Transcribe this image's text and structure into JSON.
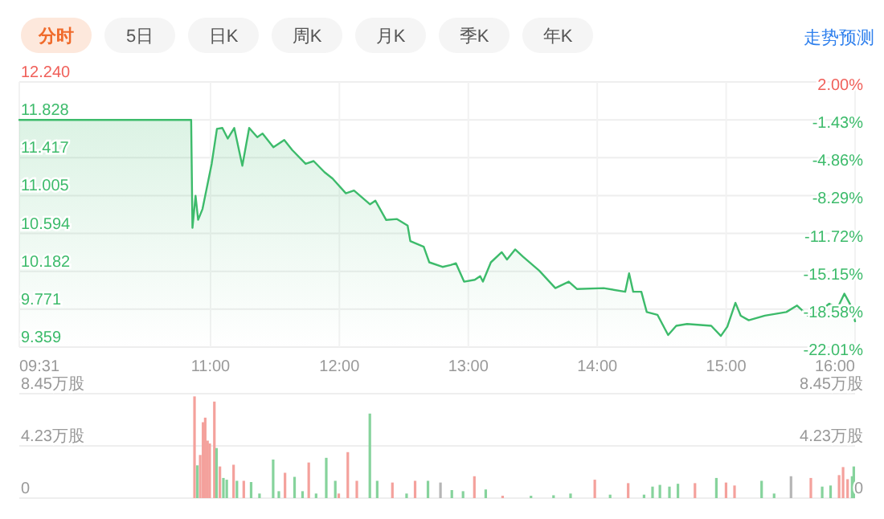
{
  "chart_data": [
    {
      "type": "other",
      "annotations": [
        "分时",
        "5日",
        "日K",
        "周K",
        "月K",
        "季K",
        "年K",
        "走势预测"
      ]
    },
    {
      "type": "area",
      "color": "#3dbb6b",
      "grid": true,
      "x": [
        9.5167,
        10.85,
        10.86,
        10.884,
        10.904,
        10.938,
        11.009,
        11.05,
        11.092,
        11.134,
        11.184,
        11.247,
        11.3,
        11.363,
        11.404,
        11.488,
        11.572,
        11.634,
        11.738,
        11.8,
        11.884,
        11.947,
        12.05,
        12.113,
        12.238,
        12.279,
        12.363,
        12.447,
        12.529,
        12.55,
        12.654,
        12.697,
        12.8,
        12.863,
        12.904,
        12.967,
        13.05,
        13.092,
        13.113,
        13.175,
        13.259,
        13.3,
        13.363,
        13.425,
        13.55,
        13.675,
        13.779,
        13.842,
        14.05,
        14.217,
        14.247,
        14.279,
        14.342,
        14.384,
        14.467,
        14.55,
        14.613,
        14.697,
        14.884,
        14.959,
        15.009,
        15.072,
        15.113,
        15.175,
        15.3,
        15.467,
        15.55,
        15.634,
        15.717,
        15.8,
        15.863,
        15.917,
        15.967,
        16.0
      ],
      "values": [
        11.828,
        11.828,
        10.655,
        11.003,
        10.742,
        10.86,
        11.35,
        11.73,
        11.74,
        11.625,
        11.74,
        11.33,
        11.74,
        11.64,
        11.68,
        11.53,
        11.61,
        11.5,
        11.35,
        11.38,
        11.26,
        11.19,
        11.03,
        11.06,
        10.91,
        10.95,
        10.74,
        10.75,
        10.68,
        10.51,
        10.45,
        10.28,
        10.23,
        10.25,
        10.27,
        10.07,
        10.09,
        10.13,
        10.07,
        10.28,
        10.39,
        10.31,
        10.42,
        10.34,
        10.19,
        10.0,
        10.07,
        9.99,
        10.0,
        9.96,
        10.16,
        9.96,
        9.96,
        9.74,
        9.71,
        9.49,
        9.59,
        9.61,
        9.59,
        9.48,
        9.58,
        9.84,
        9.7,
        9.65,
        9.7,
        9.74,
        9.81,
        9.7,
        9.74,
        9.83,
        9.78,
        9.94,
        9.81,
        9.64
      ],
      "xlim": [
        9.5167,
        16.0
      ],
      "xticks": [
        {
          "value": 9.5167,
          "label": "09:31"
        },
        {
          "value": 11,
          "label": "11:00"
        },
        {
          "value": 12,
          "label": "12:00"
        },
        {
          "value": 13,
          "label": "13:00"
        },
        {
          "value": 14,
          "label": "14:00"
        },
        {
          "value": 15,
          "label": "15:00"
        },
        {
          "value": 16,
          "label": "16:00"
        }
      ],
      "ylim": [
        9.359,
        12.24
      ],
      "yticks": [
        {
          "value": 12.24,
          "label": "12.240"
        },
        {
          "value": 11.828,
          "label": "11.828"
        },
        {
          "value": 11.417,
          "label": "11.417"
        },
        {
          "value": 11.005,
          "label": "11.005"
        },
        {
          "value": 10.594,
          "label": "10.594"
        },
        {
          "value": 10.182,
          "label": "10.182"
        },
        {
          "value": 9.771,
          "label": "9.771"
        },
        {
          "value": 9.359,
          "label": "9.359"
        }
      ],
      "y2lim": [
        -22.01,
        2.0
      ],
      "y2ticks": [
        {
          "value": 2.0,
          "label": "2.00%"
        },
        {
          "value": -1.43,
          "label": "-1.43%"
        },
        {
          "value": -4.86,
          "label": "-4.86%"
        },
        {
          "value": -8.29,
          "label": "-8.29%"
        },
        {
          "value": -11.72,
          "label": "-11.72%"
        },
        {
          "value": -15.15,
          "label": "-15.15%"
        },
        {
          "value": -18.58,
          "label": "-18.58%"
        },
        {
          "value": -22.01,
          "label": "-22.01%"
        }
      ]
    },
    {
      "type": "bar",
      "grid": "y",
      "tick_labels": "y",
      "x": [
        10.876,
        10.898,
        10.92,
        10.942,
        10.959,
        10.977,
        10.994,
        11.03,
        11.047,
        11.073,
        11.1,
        11.126,
        11.179,
        11.205,
        11.258,
        11.315,
        11.38,
        11.486,
        11.53,
        11.578,
        11.652,
        11.714,
        11.762,
        11.819,
        11.898,
        11.968,
        11.995,
        12.065,
        12.135,
        12.236,
        12.293,
        12.411,
        12.521,
        12.587,
        12.687,
        12.784,
        12.872,
        12.959,
        13.047,
        13.135,
        13.266,
        13.486,
        13.661,
        13.793,
        13.981,
        14.1,
        14.24,
        14.363,
        14.429,
        14.486,
        14.56,
        14.626,
        14.758,
        14.924,
        14.999,
        15.065,
        15.275,
        15.372,
        15.503,
        15.657,
        15.745,
        15.81,
        15.876,
        15.907,
        15.942,
        15.977,
        15.99
      ],
      "values": [
        8.23,
        2.65,
        3.49,
        6.14,
        6.51,
        4.65,
        4.42,
        7.81,
        4.05,
        2.56,
        1.63,
        1.49,
        2.7,
        1.4,
        1.4,
        1.3,
        0.37,
        3.12,
        0.56,
        2.05,
        1.72,
        0.56,
        2.88,
        0.37,
        3.26,
        1.4,
        0.37,
        3.72,
        1.4,
        6.84,
        1.4,
        1.26,
        0.37,
        1.4,
        1.4,
        1.26,
        0.65,
        0.56,
        1.77,
        0.7,
        0.19,
        0.19,
        0.23,
        0.37,
        1.49,
        0.28,
        1.21,
        0.28,
        0.93,
        1.07,
        0.93,
        1.16,
        1.21,
        1.63,
        1.26,
        1.02,
        1.4,
        0.37,
        1.77,
        1.63,
        0.93,
        1.02,
        1.86,
        2.51,
        1.53,
        1.77,
        2.56
      ],
      "colors": [
        "#f4a19c",
        "#86d39c",
        "#f4a19c",
        "#f4a19c",
        "#f4a19c",
        "#f4a19c",
        "#f4a19c",
        "#f4a19c",
        "#86d39c",
        "#f4a19c",
        "#86d39c",
        "#86d39c",
        "#f4a19c",
        "#86d39c",
        "#f4a19c",
        "#86d39c",
        "#86d39c",
        "#86d39c",
        "#86d39c",
        "#f4a19c",
        "#86d39c",
        "#86d39c",
        "#f4a19c",
        "#86d39c",
        "#86d39c",
        "#86d39c",
        "#f4a19c",
        "#f4a19c",
        "#f4a19c",
        "#86d39c",
        "#86d39c",
        "#f4a19c",
        "#86d39c",
        "#f4a19c",
        "#86d39c",
        "#b5b5b5",
        "#86d39c",
        "#86d39c",
        "#f4a19c",
        "#86d39c",
        "#f4a19c",
        "#86d39c",
        "#86d39c",
        "#86d39c",
        "#f4a19c",
        "#86d39c",
        "#f4a19c",
        "#86d39c",
        "#86d39c",
        "#86d39c",
        "#86d39c",
        "#86d39c",
        "#f4a19c",
        "#86d39c",
        "#f4a19c",
        "#f4a19c",
        "#86d39c",
        "#86d39c",
        "#b5b5b5",
        "#f4a19c",
        "#86d39c",
        "#86d39c",
        "#f4a19c",
        "#f4a19c",
        "#f4a19c",
        "#86d39c",
        "#86d39c"
      ],
      "xlim": [
        9.5167,
        16.0
      ],
      "xticks": [
        {
          "value": 11,
          "label": null
        },
        {
          "value": 12,
          "label": null
        },
        {
          "value": 13,
          "label": null
        },
        {
          "value": 14,
          "label": null
        },
        {
          "value": 15,
          "label": null
        }
      ],
      "ylim": [
        0,
        8.45
      ],
      "yticks": [
        {
          "value": 0,
          "label": "0"
        },
        {
          "value": 4.23,
          "label": "4.23万股"
        },
        {
          "value": 8.45,
          "label": "8.45万股"
        }
      ],
      "y2lim": [
        0,
        8.45
      ],
      "y2ticks": [
        {
          "value": 0,
          "label": "0"
        },
        {
          "value": 4.23,
          "label": "4.23万股"
        },
        {
          "value": 8.45,
          "label": "8.45万股"
        }
      ]
    }
  ]
}
